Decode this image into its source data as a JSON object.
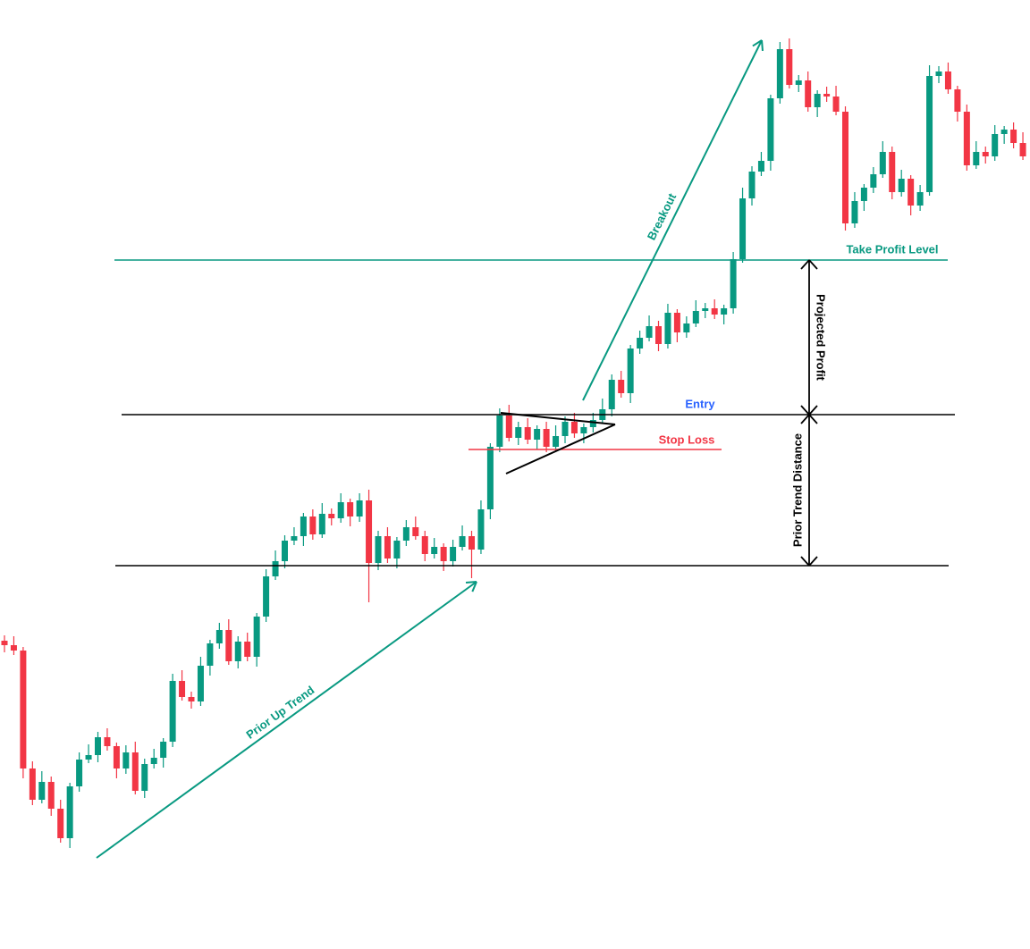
{
  "chart_data": {
    "type": "candlestick",
    "up_color": "#089981",
    "down_color": "#f23645",
    "ylim": [
      0,
      1057
    ],
    "open": [
      340,
      335,
      329,
      197,
      162,
      182,
      152,
      119,
      177,
      207,
      212,
      232,
      222,
      197,
      215,
      172,
      202,
      209,
      227,
      295,
      277,
      272,
      312,
      337,
      352,
      317,
      339,
      322,
      367,
      412,
      429,
      452,
      457,
      479,
      459,
      482,
      477,
      495,
      479,
      497,
      427,
      457,
      432,
      452,
      467,
      457,
      437,
      445,
      429,
      445,
      457,
      442,
      487,
      557,
      592,
      567,
      579,
      565,
      577,
      557,
      569,
      585,
      572,
      579,
      587,
      599,
      632,
      617,
      667,
      679,
      692,
      672,
      707,
      685,
      695,
      709,
      712,
      705,
      712,
      767,
      835,
      865,
      877,
      947,
      1002,
      962,
      967,
      937,
      952,
      949,
      932,
      807,
      832,
      847,
      862,
      887,
      842,
      857,
      827,
      842,
      972,
      977,
      957,
      932,
      872,
      887,
      882,
      907,
      912,
      897
    ],
    "high": [
      346,
      345,
      333,
      205,
      194,
      188,
      162,
      181,
      215,
      224,
      238,
      242,
      226,
      223,
      227,
      208,
      219,
      231,
      303,
      307,
      283,
      322,
      341,
      360,
      364,
      345,
      349,
      371,
      420,
      441,
      458,
      467,
      483,
      487,
      494,
      488,
      505,
      499,
      505,
      509,
      463,
      467,
      456,
      475,
      479,
      463,
      455,
      449,
      453,
      469,
      463,
      497,
      561,
      600,
      604,
      585,
      589,
      581,
      585,
      581,
      591,
      595,
      583,
      595,
      611,
      638,
      642,
      671,
      687,
      704,
      698,
      717,
      711,
      703,
      721,
      718,
      722,
      716,
      775,
      847,
      871,
      887,
      951,
      1010,
      1014,
      973,
      977,
      956,
      960,
      961,
      938,
      842,
      851,
      870,
      899,
      893,
      867,
      861,
      850,
      984,
      983,
      987,
      961,
      940,
      899,
      893,
      917,
      916,
      920,
      909
    ],
    "low": [
      327,
      324,
      186,
      156,
      158,
      144,
      114,
      108,
      171,
      203,
      204,
      217,
      186,
      191,
      168,
      164,
      197,
      198,
      221,
      273,
      264,
      267,
      301,
      331,
      313,
      309,
      317,
      311,
      361,
      408,
      421,
      447,
      446,
      453,
      455,
      469,
      472,
      468,
      473,
      383,
      419,
      427,
      421,
      446,
      453,
      429,
      432,
      418,
      423,
      441,
      410,
      437,
      476,
      551,
      563,
      559,
      560,
      554,
      551,
      553,
      561,
      567,
      561,
      573,
      583,
      591,
      612,
      606,
      661,
      675,
      664,
      667,
      674,
      679,
      691,
      701,
      700,
      694,
      706,
      763,
      827,
      860,
      866,
      941,
      958,
      954,
      932,
      926,
      943,
      928,
      799,
      802,
      821,
      841,
      858,
      834,
      837,
      816,
      821,
      838,
      964,
      952,
      921,
      866,
      868,
      874,
      877,
      896,
      891,
      878
    ],
    "close": [
      335,
      329,
      197,
      162,
      182,
      152,
      119,
      177,
      207,
      212,
      232,
      222,
      197,
      215,
      172,
      202,
      209,
      227,
      295,
      277,
      272,
      312,
      337,
      352,
      317,
      339,
      322,
      367,
      412,
      429,
      452,
      457,
      479,
      459,
      482,
      477,
      495,
      479,
      497,
      427,
      457,
      432,
      452,
      467,
      457,
      437,
      445,
      429,
      445,
      457,
      442,
      487,
      557,
      592,
      567,
      579,
      565,
      577,
      557,
      569,
      585,
      572,
      579,
      587,
      599,
      632,
      617,
      667,
      679,
      692,
      672,
      707,
      685,
      695,
      709,
      712,
      705,
      712,
      767,
      835,
      865,
      877,
      947,
      1002,
      962,
      967,
      937,
      952,
      949,
      932,
      807,
      832,
      847,
      862,
      887,
      842,
      857,
      827,
      842,
      972,
      977,
      957,
      932,
      872,
      887,
      882,
      907,
      912,
      897,
      882
    ],
    "levels": [
      {
        "name": "Take Profit Level",
        "value": 766,
        "color": "#089981",
        "label_color": "#089981"
      },
      {
        "name": "Entry",
        "value": 593,
        "color": "#000000",
        "label_color": "#2962ff"
      },
      {
        "name": "Stop Loss",
        "value": 554,
        "color": "#f23645",
        "label_color": "#f23645"
      },
      {
        "value": 424,
        "color": "#000000"
      }
    ],
    "annotations": [
      "Breakout",
      "Prior Up Trend",
      "Projected Profit",
      "Prior Trend Distance"
    ],
    "annotation_color": "#089981"
  }
}
